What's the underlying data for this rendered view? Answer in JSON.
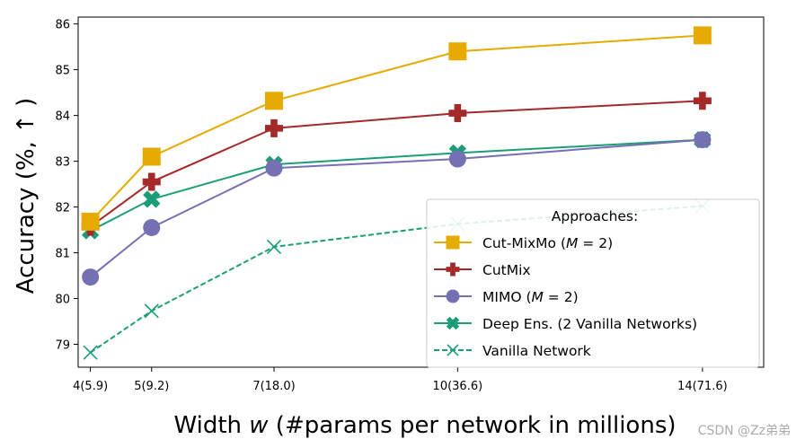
{
  "chart_data": {
    "type": "line",
    "x": [
      4,
      5,
      7,
      10,
      14
    ],
    "categories": [
      "4(5.9)",
      "5(9.2)",
      "7(18.0)",
      "10(36.6)",
      "14(71.6)"
    ],
    "xlabel": "Width w (#params per network in millions)",
    "ylabel": "Accuracy (%, ↑ )",
    "xlim": [
      3.8,
      15.0
    ],
    "ylim": [
      78.5,
      86.15
    ],
    "yticks": [
      79,
      80,
      81,
      82,
      83,
      84,
      85,
      86
    ],
    "grid": false,
    "legend": {
      "title": "Approaches:",
      "placement": "lower-right"
    },
    "series": [
      {
        "name": "Cut-MixMo (M = 2)",
        "name_main": "Cut-MixMo (",
        "name_var": "M",
        "name_tail": " = 2)",
        "values": [
          81.68,
          83.1,
          84.32,
          85.4,
          85.75
        ],
        "color": "#e6ab02",
        "marker": "square",
        "dash": false,
        "opacity": 1
      },
      {
        "name": "CutMix",
        "name_main": "CutMix",
        "name_var": "",
        "name_tail": "",
        "values": [
          81.57,
          82.55,
          83.72,
          84.05,
          84.32
        ],
        "color": "#a6292a",
        "marker": "plus",
        "dash": false,
        "opacity": 1
      },
      {
        "name": "MIMO (M = 2)",
        "name_main": "MIMO (",
        "name_var": "M",
        "name_tail": " = 2)",
        "values": [
          80.47,
          81.55,
          82.85,
          83.05,
          83.47
        ],
        "color": "#7570b3",
        "marker": "circle",
        "dash": false,
        "opacity": 1
      },
      {
        "name": "Deep Ens. (2 Vanilla Networks)",
        "name_main": "Deep Ens. (2 Vanilla Networks)",
        "name_var": "",
        "name_tail": "",
        "values": [
          81.48,
          82.17,
          82.93,
          83.18,
          83.47
        ],
        "color": "#1b9e77",
        "marker": "xfilled",
        "dash": false,
        "opacity": 1
      },
      {
        "name": "Vanilla Network",
        "name_main": "Vanilla Network",
        "name_var": "",
        "name_tail": "",
        "values": [
          78.82,
          79.73,
          81.13,
          81.63,
          82.02
        ],
        "color": "#1b9e77",
        "marker": "x",
        "dash": true,
        "opacity": 1
      }
    ]
  },
  "watermark": "CSDN @Zz弟弟"
}
